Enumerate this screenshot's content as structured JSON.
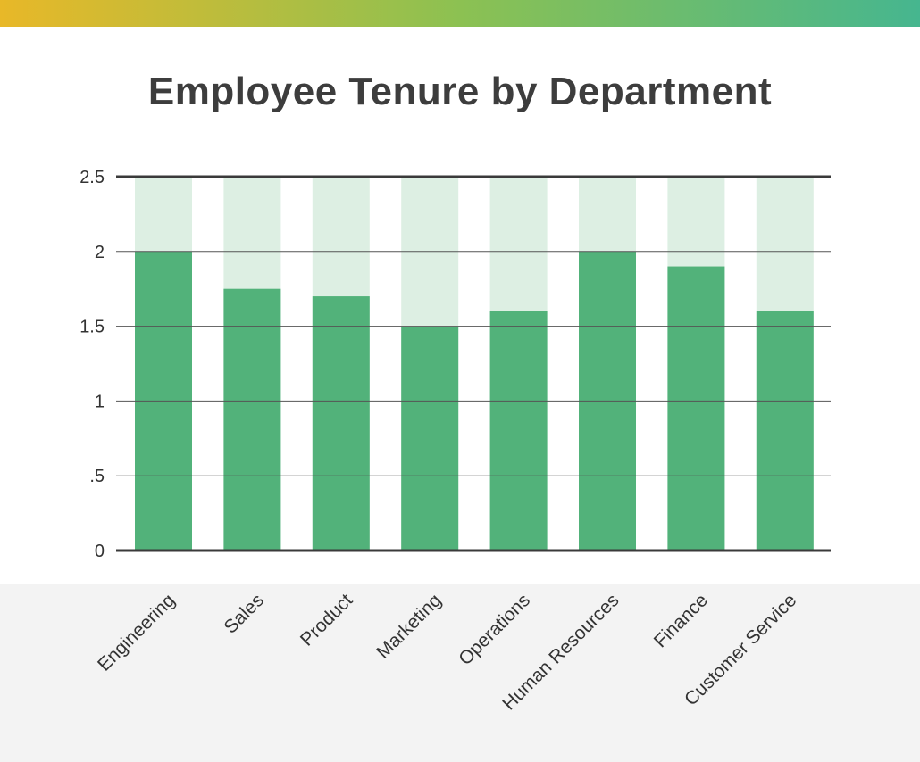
{
  "colors": {
    "gradient_start": "#e8b828",
    "gradient_mid": "#8cc152",
    "gradient_end": "#46b68f",
    "bar_fill": "#52b27a",
    "bar_background": "#ddefe3",
    "gridline": "#555555",
    "axis_line": "#3a3a3a",
    "label_band": "#f3f3f3"
  },
  "chart_data": {
    "type": "bar",
    "title": "Employee Tenure by Department",
    "xlabel": "",
    "ylabel": "",
    "ylim": [
      0,
      2.5
    ],
    "y_ticks": [
      {
        "value": 0,
        "label": "0"
      },
      {
        "value": 0.5,
        "label": ".5"
      },
      {
        "value": 1,
        "label": "1"
      },
      {
        "value": 1.5,
        "label": "1.5"
      },
      {
        "value": 2,
        "label": "2"
      },
      {
        "value": 2.5,
        "label": "2.5"
      }
    ],
    "categories": [
      "Engineering",
      "Sales",
      "Product",
      "Marketing",
      "Operations",
      "Human Resources",
      "Finance",
      "Customer Service"
    ],
    "values": [
      2.0,
      1.75,
      1.7,
      1.5,
      1.6,
      2.0,
      1.9,
      1.6
    ],
    "grid": true,
    "legend": "none"
  }
}
